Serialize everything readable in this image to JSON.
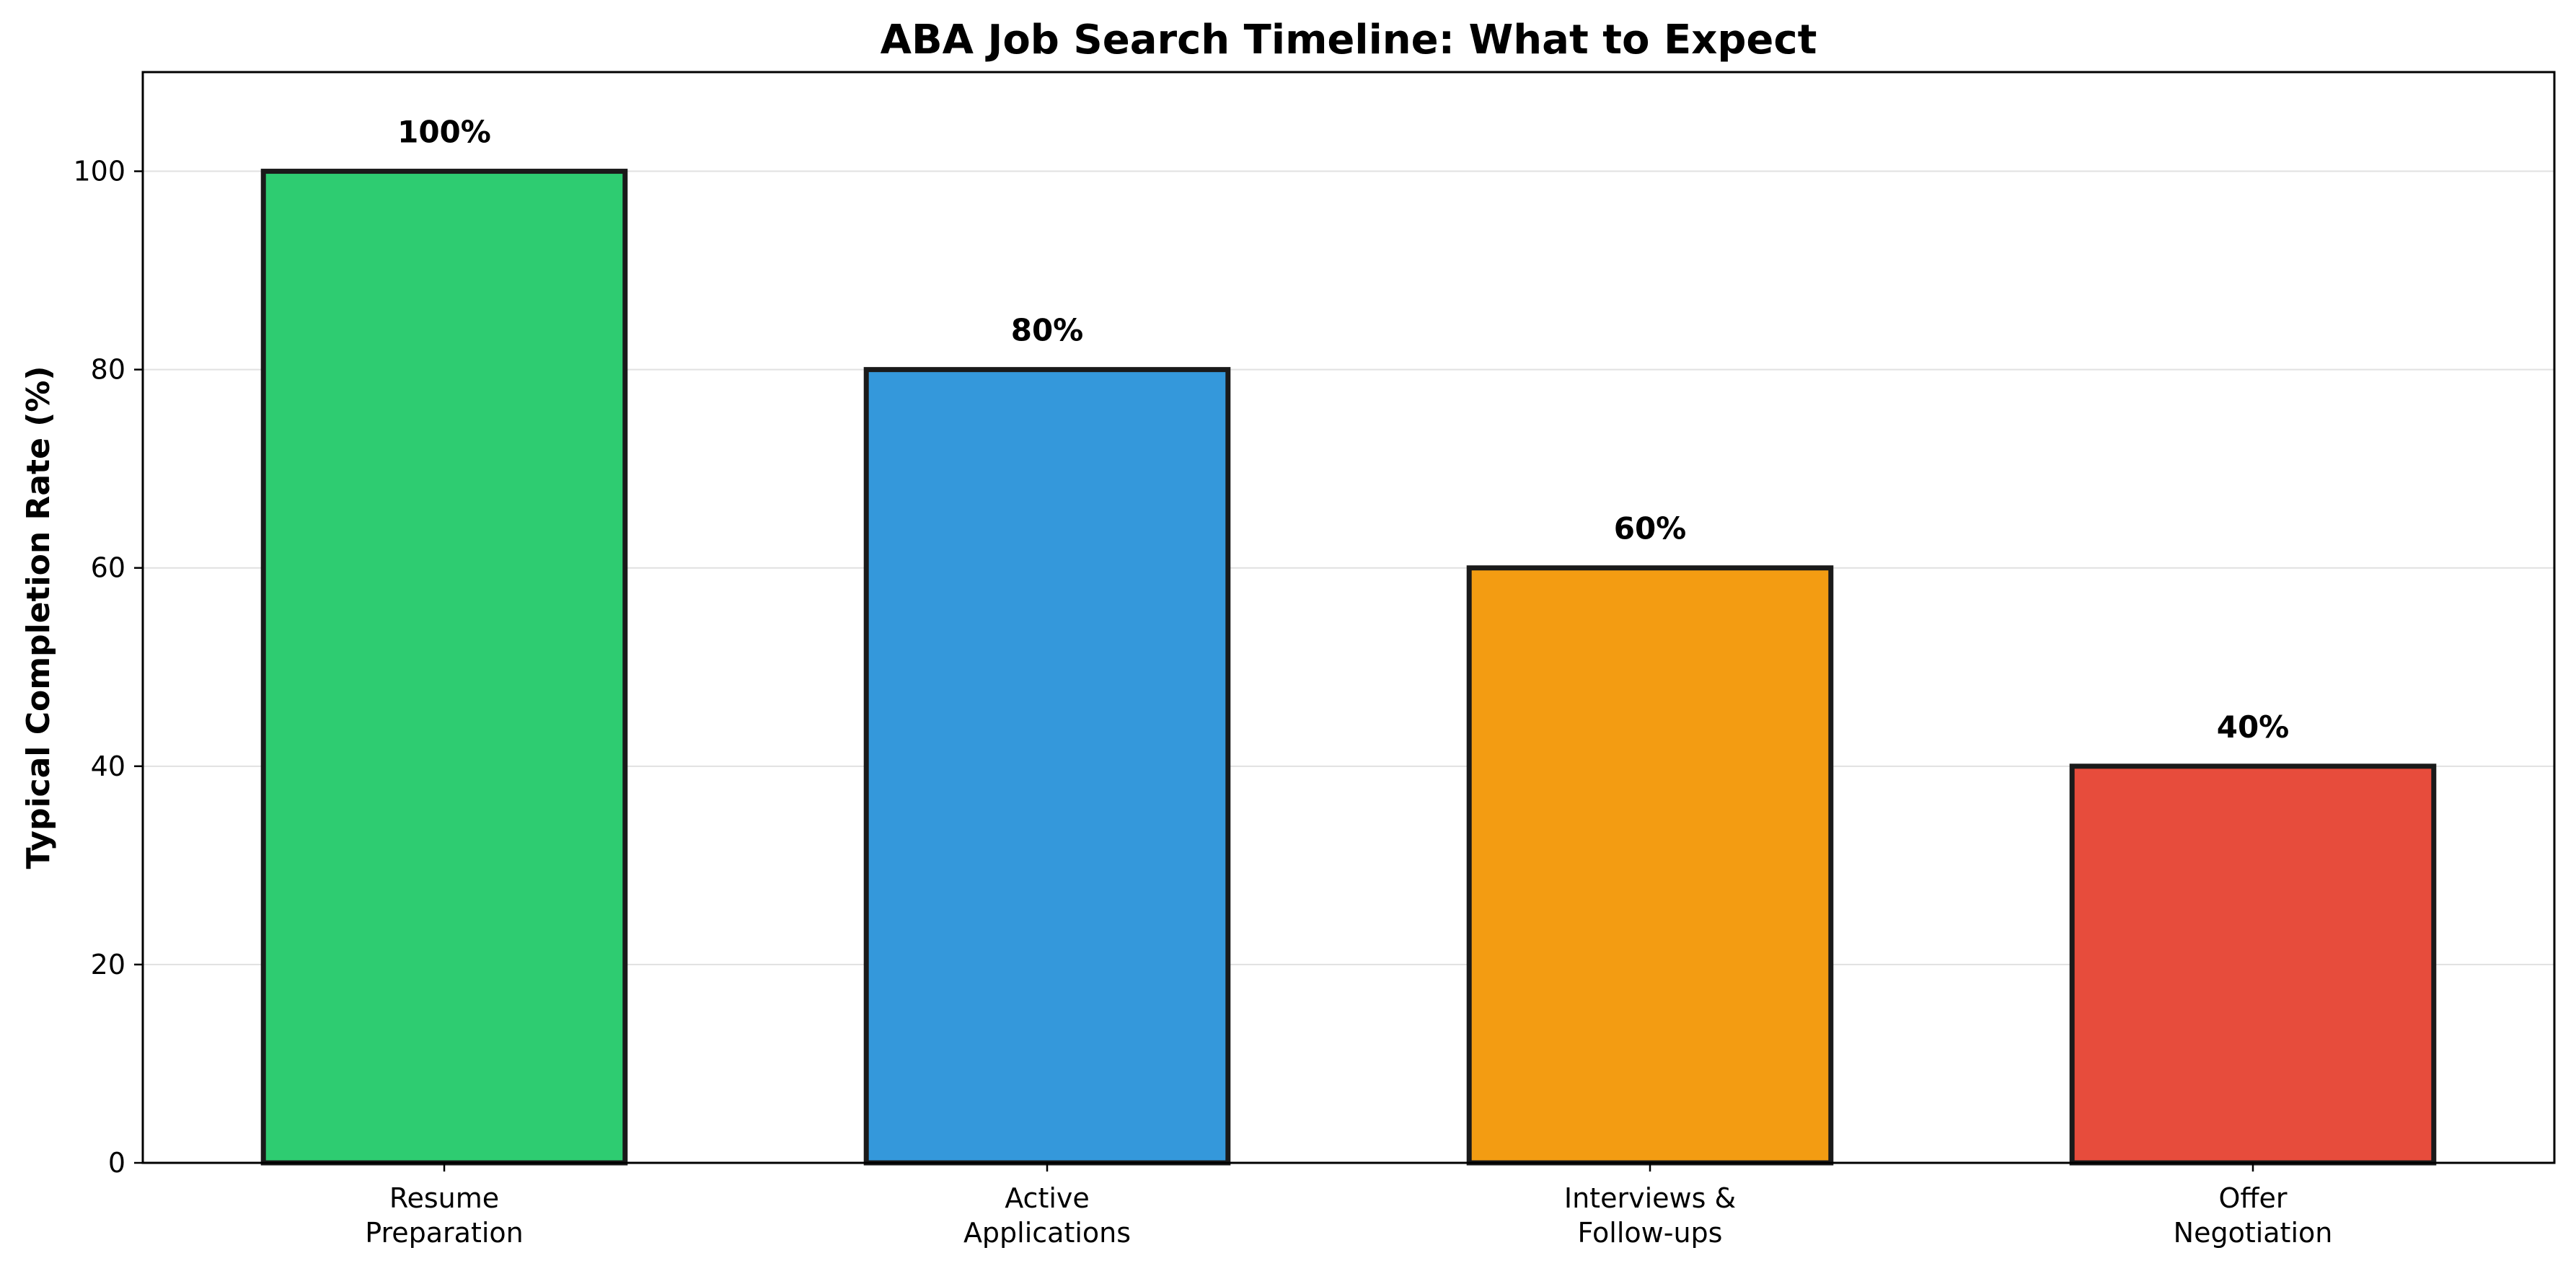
{
  "chart_data": {
    "type": "bar",
    "title": "ABA Job Search Timeline: What to Expect",
    "xlabel": "",
    "ylabel": "Typical Completion Rate (%)",
    "categories": [
      [
        "Resume",
        "Preparation"
      ],
      [
        "Active",
        "Applications"
      ],
      [
        "Interviews &",
        "Follow-ups"
      ],
      [
        "Offer",
        "Negotiation"
      ]
    ],
    "values": [
      100,
      80,
      60,
      40
    ],
    "value_labels": [
      "100%",
      "80%",
      "60%",
      "40%"
    ],
    "colors": [
      "#2ecc71",
      "#3498db",
      "#f39c12",
      "#e74c3c"
    ],
    "edge_color": "#1a1a1a",
    "ylim": [
      0,
      110
    ],
    "yticks": [
      0,
      20,
      40,
      60,
      80,
      100
    ],
    "grid": "horizontal",
    "legend": "none"
  }
}
